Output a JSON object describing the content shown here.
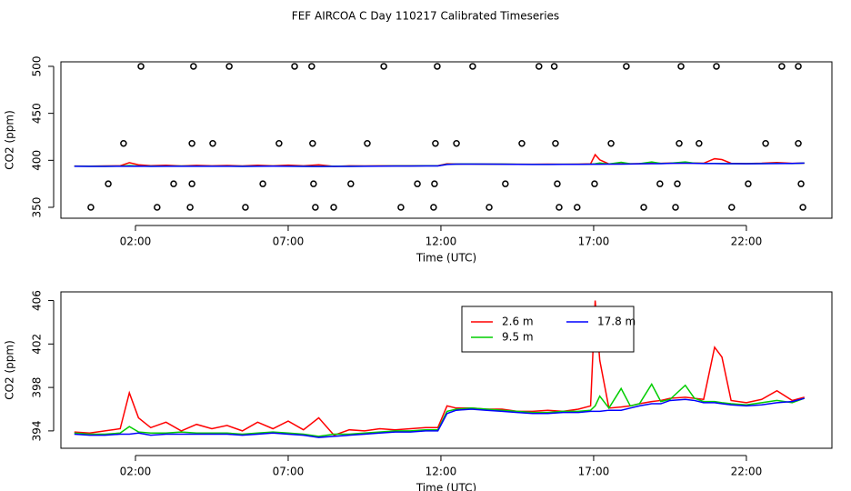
{
  "chart_data": [
    {
      "type": "scatter",
      "title": "FEF AIRCOA C  Day 110217  Calibrated Timeseries",
      "xlabel": "Time (UTC)",
      "ylabel": "CO2 (ppm)",
      "xlim": [
        -0.44,
        24.8
      ],
      "ylim": [
        338.4,
        504.8
      ],
      "xticks": [
        {
          "value": 2,
          "label": "02:00"
        },
        {
          "value": 7,
          "label": "07:00"
        },
        {
          "value": 12,
          "label": "12:00"
        },
        {
          "value": 17,
          "label": "17:00"
        },
        {
          "value": 22,
          "label": "22:00"
        }
      ],
      "yticks": [
        350,
        400,
        450,
        500
      ],
      "color": "#000000",
      "x": [
        2.18,
        3.9,
        5.07,
        7.21,
        7.77,
        10.13,
        11.88,
        13.04,
        15.21,
        15.71,
        18.07,
        19.86,
        21.02,
        23.16,
        23.7,
        1.61,
        3.85,
        4.53,
        6.7,
        7.8,
        9.59,
        11.82,
        12.51,
        14.65,
        15.75,
        17.57,
        19.8,
        20.45,
        22.63,
        23.7,
        1.11,
        3.25,
        3.85,
        6.17,
        7.83,
        9.05,
        11.23,
        11.79,
        14.11,
        15.81,
        17.03,
        19.17,
        19.74,
        22.06,
        23.79,
        0.54,
        2.71,
        3.79,
        5.6,
        7.89,
        8.49,
        10.69,
        11.76,
        13.58,
        15.87,
        16.46,
        18.64,
        19.68,
        21.52,
        23.85
      ],
      "values": [
        500,
        500,
        500,
        500,
        500,
        500,
        500,
        500,
        500,
        500,
        500,
        500,
        500,
        500,
        500,
        418,
        418,
        418,
        418,
        418,
        418,
        418,
        418,
        418,
        418,
        418,
        418,
        418,
        418,
        418,
        375,
        375,
        375,
        375,
        375,
        375,
        375,
        375,
        375,
        375,
        375,
        375,
        375,
        375,
        375,
        350,
        350,
        350,
        350,
        350,
        350,
        350,
        350,
        350,
        350,
        350,
        350,
        350,
        350,
        350
      ]
    },
    {
      "type": "line",
      "xlabel": "Time (UTC)",
      "ylabel": "CO2 (ppm)",
      "xlim": [
        -0.44,
        24.8
      ],
      "ylim": [
        392.4,
        406.8
      ],
      "xticks": [
        {
          "value": 2,
          "label": "02:00"
        },
        {
          "value": 7,
          "label": "07:00"
        },
        {
          "value": 12,
          "label": "12:00"
        },
        {
          "value": 17,
          "label": "17:00"
        },
        {
          "value": 22,
          "label": "22:00"
        }
      ],
      "yticks": [
        394,
        398,
        402,
        406
      ],
      "legend": "top",
      "x": [
        0,
        0.5,
        1,
        1.5,
        1.8,
        2.1,
        2.5,
        3,
        3.5,
        4,
        4.5,
        5,
        5.5,
        6,
        6.5,
        7,
        7.5,
        8,
        8.5,
        9,
        9.5,
        10,
        10.5,
        11,
        11.5,
        11.9,
        12.2,
        12.5,
        13,
        13.5,
        14,
        14.5,
        15,
        15.5,
        16,
        16.5,
        16.9,
        17.05,
        17.2,
        17.5,
        17.9,
        18.2,
        18.5,
        18.9,
        19.2,
        19.5,
        20,
        20.3,
        20.6,
        20.96,
        21.2,
        21.5,
        22,
        22.5,
        23,
        23.5,
        23.9
      ],
      "series": [
        {
          "name": "2.6 m",
          "color": "#ff0000",
          "values": [
            393.9,
            393.8,
            394.0,
            394.2,
            397.5,
            395.2,
            394.3,
            394.8,
            394.0,
            394.6,
            394.2,
            394.5,
            394.0,
            394.8,
            394.2,
            394.9,
            394.1,
            395.2,
            393.6,
            394.1,
            394.0,
            394.2,
            394.1,
            394.2,
            394.3,
            394.3,
            396.3,
            396.1,
            396.1,
            396.0,
            396.0,
            395.8,
            395.8,
            395.9,
            395.8,
            396.0,
            396.3,
            406.0,
            400.5,
            396.1,
            396.2,
            396.3,
            396.5,
            396.7,
            396.8,
            397.0,
            397.1,
            397.0,
            396.9,
            401.7,
            400.8,
            396.8,
            396.6,
            396.9,
            397.7,
            396.8,
            397.1
          ]
        },
        {
          "name": "9.5 m",
          "color": "#00cd00",
          "values": [
            393.8,
            393.7,
            393.7,
            393.8,
            394.4,
            393.9,
            393.8,
            393.8,
            393.9,
            393.8,
            393.8,
            393.8,
            393.7,
            393.8,
            393.9,
            393.8,
            393.7,
            393.5,
            393.7,
            393.7,
            393.8,
            393.9,
            394.0,
            394.0,
            394.1,
            394.1,
            395.8,
            396.0,
            396.1,
            396.0,
            395.9,
            395.8,
            395.7,
            395.7,
            395.8,
            395.8,
            395.9,
            396.3,
            397.2,
            396.1,
            397.9,
            396.3,
            396.5,
            398.3,
            396.7,
            396.9,
            398.2,
            397.0,
            396.7,
            396.7,
            396.6,
            396.5,
            396.4,
            396.6,
            396.8,
            396.6,
            397.0
          ]
        },
        {
          "name": "17.8 m",
          "color": "#0000ff",
          "values": [
            393.7,
            393.6,
            393.6,
            393.7,
            393.7,
            393.8,
            393.6,
            393.7,
            393.7,
            393.7,
            393.7,
            393.7,
            393.6,
            393.7,
            393.8,
            393.7,
            393.6,
            393.4,
            393.5,
            393.6,
            393.7,
            393.8,
            393.9,
            393.9,
            394.0,
            394.0,
            395.6,
            395.9,
            396.0,
            395.9,
            395.8,
            395.7,
            395.6,
            395.6,
            395.7,
            395.7,
            395.8,
            395.8,
            395.8,
            395.9,
            395.9,
            396.1,
            396.3,
            396.5,
            396.5,
            396.8,
            396.9,
            396.8,
            396.6,
            396.6,
            396.5,
            396.4,
            396.3,
            396.4,
            396.6,
            396.7,
            397.0
          ]
        }
      ]
    }
  ]
}
